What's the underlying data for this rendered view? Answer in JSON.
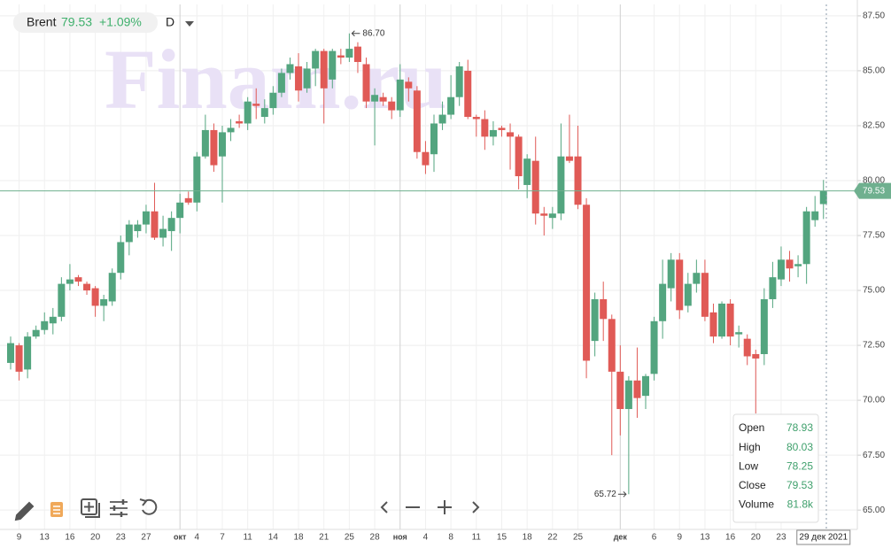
{
  "chart_data": {
    "type": "candlestick",
    "symbol": "Brent",
    "interval": "D",
    "change_label": "+1.09%",
    "watermark": "Finam.ru",
    "up_color": "#53a57f",
    "down_color": "#e05a56",
    "price_line_color": "#6fb08f",
    "grid": true,
    "categories": [
      null,
      "9",
      null,
      null,
      "13",
      null,
      null,
      "16",
      null,
      null,
      "20",
      null,
      null,
      "23",
      null,
      null,
      "27",
      null,
      null,
      null,
      "окт",
      null,
      "4",
      null,
      null,
      "7",
      null,
      null,
      "11",
      null,
      null,
      "14",
      null,
      null,
      "18",
      null,
      null,
      "21",
      null,
      null,
      "25",
      null,
      null,
      "28",
      null,
      null,
      "ноя",
      null,
      null,
      "4",
      null,
      null,
      "8",
      null,
      null,
      "11",
      null,
      null,
      "15",
      null,
      null,
      "18",
      null,
      null,
      "22",
      null,
      null,
      "25",
      null,
      null,
      null,
      null,
      "дек",
      null,
      null,
      null,
      "6",
      null,
      null,
      "9",
      null,
      null,
      "13",
      null,
      null,
      "16",
      null,
      null,
      "20",
      null,
      null,
      "23",
      null,
      null,
      null,
      null,
      "29 дек 2021"
    ],
    "open": [
      71.7,
      72.5,
      71.4,
      72.9,
      73.2,
      73.5,
      73.8,
      75.3,
      75.6,
      75.3,
      75.1,
      74.3,
      74.5,
      75.8,
      77.2,
      77.7,
      78.0,
      78.6,
      77.4,
      77.7,
      78.3,
      79.2,
      79.0,
      81.1,
      82.3,
      81.1,
      82.2,
      82.7,
      82.6,
      83.5,
      82.9,
      83.3,
      84.0,
      84.9,
      85.2,
      84.2,
      85.1,
      85.9,
      84.6,
      85.7,
      85.6,
      86.1,
      85.3,
      83.6,
      83.8,
      83.6,
      83.2,
      84.5,
      84.1,
      81.3,
      81.2,
      82.6,
      83.0,
      83.8,
      85.0,
      82.9,
      82.8,
      82.0,
      82.4,
      82.2,
      82.0,
      79.8,
      80.9,
      78.5,
      78.3,
      78.5,
      81.1,
      81.1,
      78.9,
      72.7,
      74.6,
      73.7,
      71.3,
      69.6,
      70.9,
      70.2,
      71.2,
      73.6,
      75.1,
      76.4,
      74.3,
      75.3,
      75.8,
      74.0,
      72.9,
      74.4,
      73.0,
      72.8,
      72.1,
      72.1,
      74.6,
      75.5,
      76.4,
      76.1,
      76.2,
      78.2,
      78.93
    ],
    "high": [
      72.9,
      72.6,
      73.1,
      73.4,
      74.0,
      74.2,
      75.6,
      76.2,
      75.7,
      75.4,
      75.2,
      74.8,
      76.0,
      77.5,
      78.2,
      78.2,
      78.9,
      79.9,
      78.4,
      78.6,
      79.4,
      79.5,
      81.3,
      83.0,
      82.6,
      82.5,
      82.8,
      83.0,
      83.8,
      84.2,
      83.7,
      84.3,
      85.1,
      85.6,
      85.8,
      85.4,
      86.0,
      86.0,
      86.0,
      86.0,
      86.7,
      86.3,
      85.6,
      84.2,
      84.0,
      83.8,
      85.3,
      84.7,
      84.3,
      81.8,
      83.0,
      83.6,
      84.8,
      85.4,
      85.5,
      83.0,
      83.2,
      82.7,
      82.5,
      82.6,
      82.1,
      81.2,
      82.0,
      78.8,
      78.8,
      82.6,
      83.0,
      82.5,
      79.2,
      74.9,
      75.4,
      73.9,
      72.5,
      71.1,
      72.4,
      71.2,
      73.8,
      76.4,
      76.7,
      76.7,
      75.8,
      76.4,
      76.4,
      74.4,
      74.5,
      74.6,
      73.4,
      73.0,
      72.3,
      75.1,
      76.3,
      77.0,
      76.8,
      76.6,
      78.8,
      79.3,
      80.03
    ],
    "low": [
      71.4,
      70.9,
      71.0,
      72.8,
      73.0,
      73.0,
      73.6,
      75.0,
      75.2,
      74.8,
      73.8,
      73.6,
      74.3,
      75.5,
      76.6,
      77.4,
      77.6,
      77.3,
      77.0,
      76.8,
      77.6,
      78.9,
      78.6,
      81.0,
      80.4,
      79.0,
      81.8,
      82.4,
      82.3,
      82.8,
      82.6,
      83.0,
      83.8,
      84.6,
      83.6,
      84.0,
      84.3,
      82.6,
      84.2,
      85.3,
      85.4,
      84.9,
      83.3,
      81.6,
      83.4,
      82.8,
      82.9,
      83.6,
      81.0,
      80.3,
      80.4,
      82.3,
      82.8,
      83.4,
      82.8,
      82.0,
      81.4,
      81.6,
      82.0,
      80.5,
      79.6,
      79.2,
      78.0,
      77.5,
      77.8,
      78.2,
      80.8,
      78.7,
      71.0,
      72.0,
      72.7,
      67.5,
      68.4,
      65.72,
      69.2,
      69.6,
      70.9,
      72.8,
      74.5,
      73.7,
      74.0,
      74.9,
      73.6,
      72.6,
      72.8,
      72.5,
      72.4,
      71.6,
      69.4,
      71.6,
      74.2,
      75.2,
      75.4,
      75.6,
      75.3,
      77.9,
      78.25
    ],
    "close": [
      72.6,
      71.3,
      72.9,
      73.2,
      73.6,
      73.8,
      75.3,
      75.5,
      75.4,
      75.0,
      74.3,
      74.6,
      75.8,
      77.2,
      78.0,
      78.0,
      78.6,
      77.4,
      77.8,
      78.3,
      79.0,
      79.0,
      81.1,
      82.3,
      80.7,
      82.2,
      82.4,
      82.6,
      83.6,
      83.4,
      83.3,
      84.0,
      84.9,
      85.3,
      84.1,
      85.1,
      85.9,
      84.2,
      85.9,
      85.6,
      86.0,
      85.4,
      83.6,
      83.9,
      83.6,
      83.2,
      84.6,
      84.2,
      81.3,
      80.7,
      82.6,
      83.0,
      83.8,
      85.2,
      82.9,
      82.8,
      82.0,
      82.3,
      82.3,
      82.0,
      80.2,
      81.0,
      78.5,
      78.4,
      78.5,
      81.1,
      80.9,
      78.9,
      71.8,
      74.6,
      73.7,
      71.3,
      69.6,
      70.9,
      70.1,
      71.1,
      73.6,
      75.3,
      76.4,
      74.1,
      75.3,
      75.8,
      73.8,
      72.9,
      74.4,
      72.9,
      73.1,
      72.0,
      71.9,
      74.6,
      75.6,
      76.4,
      76.0,
      76.2,
      78.6,
      78.6,
      79.53
    ],
    "annotations": [
      {
        "value": 86.7,
        "label": "86.70"
      },
      {
        "value": 65.72,
        "label": "65.72"
      }
    ],
    "ylim": [
      64.12,
      88.02
    ],
    "yticks": [
      {
        "value": 65,
        "label": "65.00"
      },
      {
        "value": 67.5,
        "label": "67.50"
      },
      {
        "value": 70,
        "label": "70.00"
      },
      {
        "value": 72.5,
        "label": "72.50"
      },
      {
        "value": 75,
        "label": "75.00"
      },
      {
        "value": 77.5,
        "label": "77.50"
      },
      {
        "value": 80,
        "label": "80.00"
      },
      {
        "value": 82.5,
        "label": "82.50"
      },
      {
        "value": 85,
        "label": "85.00"
      },
      {
        "value": 87.5,
        "label": "87.50"
      }
    ],
    "tooltip_labels": [
      "Open",
      "High",
      "Low",
      "Close",
      "Volume"
    ],
    "volume_label": "81.8k"
  }
}
